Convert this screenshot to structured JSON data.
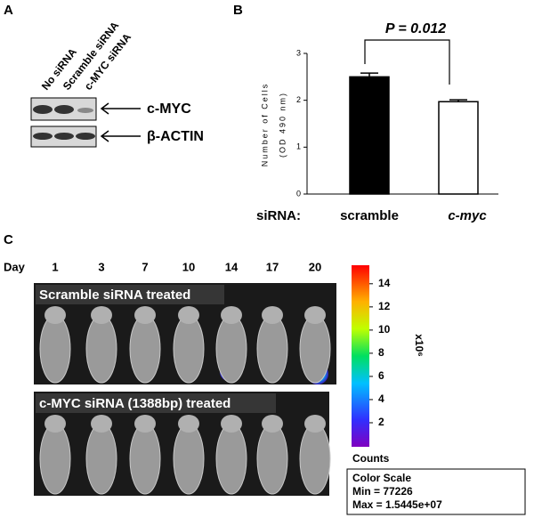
{
  "panel_a": {
    "label": "A",
    "lanes": [
      "No siRNA",
      "Scramble siRNA",
      "c-MYC siRNA"
    ],
    "bands": [
      "c-MYC",
      "β-ACTIN"
    ]
  },
  "panel_b_label": "B",
  "chart_data": {
    "type": "bar",
    "categories": [
      "scramble",
      "c-myc"
    ],
    "values": [
      2.5,
      1.97
    ],
    "errors": [
      0.08,
      0.04
    ],
    "colors": [
      "#000000",
      "#ffffff"
    ],
    "ylim": [
      0,
      3
    ],
    "yticks": [
      0,
      1,
      2,
      3
    ],
    "ylabel": "Number of Cells",
    "ylabel2": "(OD 490 nm)",
    "xlabel": "siRNA:",
    "annotation": "P = 0.012"
  },
  "panel_c": {
    "label": "C",
    "day_label": "Day",
    "days": [
      "1",
      "3",
      "7",
      "10",
      "14",
      "17",
      "20"
    ],
    "rows": [
      "Scramble siRNA treated",
      "c-MYC siRNA (1388bp) treated"
    ],
    "colorbar": {
      "lim": [
        0.077226,
        15.445
      ],
      "ticks": [
        2,
        4,
        6,
        8,
        10,
        12,
        14
      ],
      "unit": "x10⁶",
      "label": "Counts",
      "scale_title": "Color Scale",
      "min_label": "Min = 77226",
      "max_label": "Max = 1.5445e+07"
    }
  }
}
